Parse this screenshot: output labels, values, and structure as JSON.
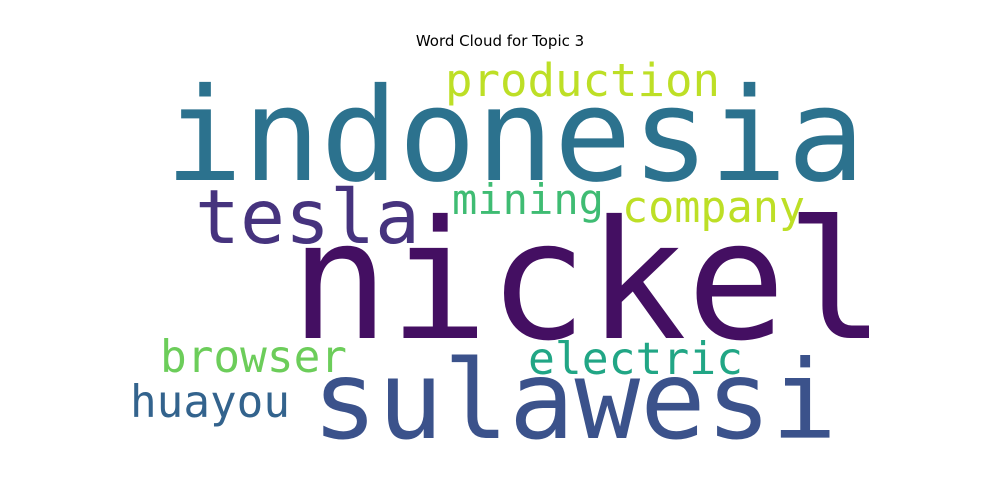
{
  "title": "Word Cloud for Topic 3",
  "chart_data": {
    "type": "wordcloud",
    "title": "Word Cloud for Topic 3",
    "colormap": "viridis",
    "background": "#ffffff",
    "words": [
      {
        "text": "nickel",
        "weight": 1.0,
        "color": "#440f62"
      },
      {
        "text": "indonesia",
        "weight": 0.82,
        "color": "#2c728e"
      },
      {
        "text": "sulawesi",
        "weight": 0.62,
        "color": "#3b528b"
      },
      {
        "text": "tesla",
        "weight": 0.42,
        "color": "#46337e"
      },
      {
        "text": "production",
        "weight": 0.3,
        "color": "#bddf26"
      },
      {
        "text": "company",
        "weight": 0.28,
        "color": "#bddf26"
      },
      {
        "text": "mining",
        "weight": 0.26,
        "color": "#3fbc73"
      },
      {
        "text": "electric",
        "weight": 0.28,
        "color": "#21a685"
      },
      {
        "text": "browser",
        "weight": 0.28,
        "color": "#6ccd5a"
      },
      {
        "text": "huayou",
        "weight": 0.28,
        "color": "#33638d"
      }
    ]
  }
}
